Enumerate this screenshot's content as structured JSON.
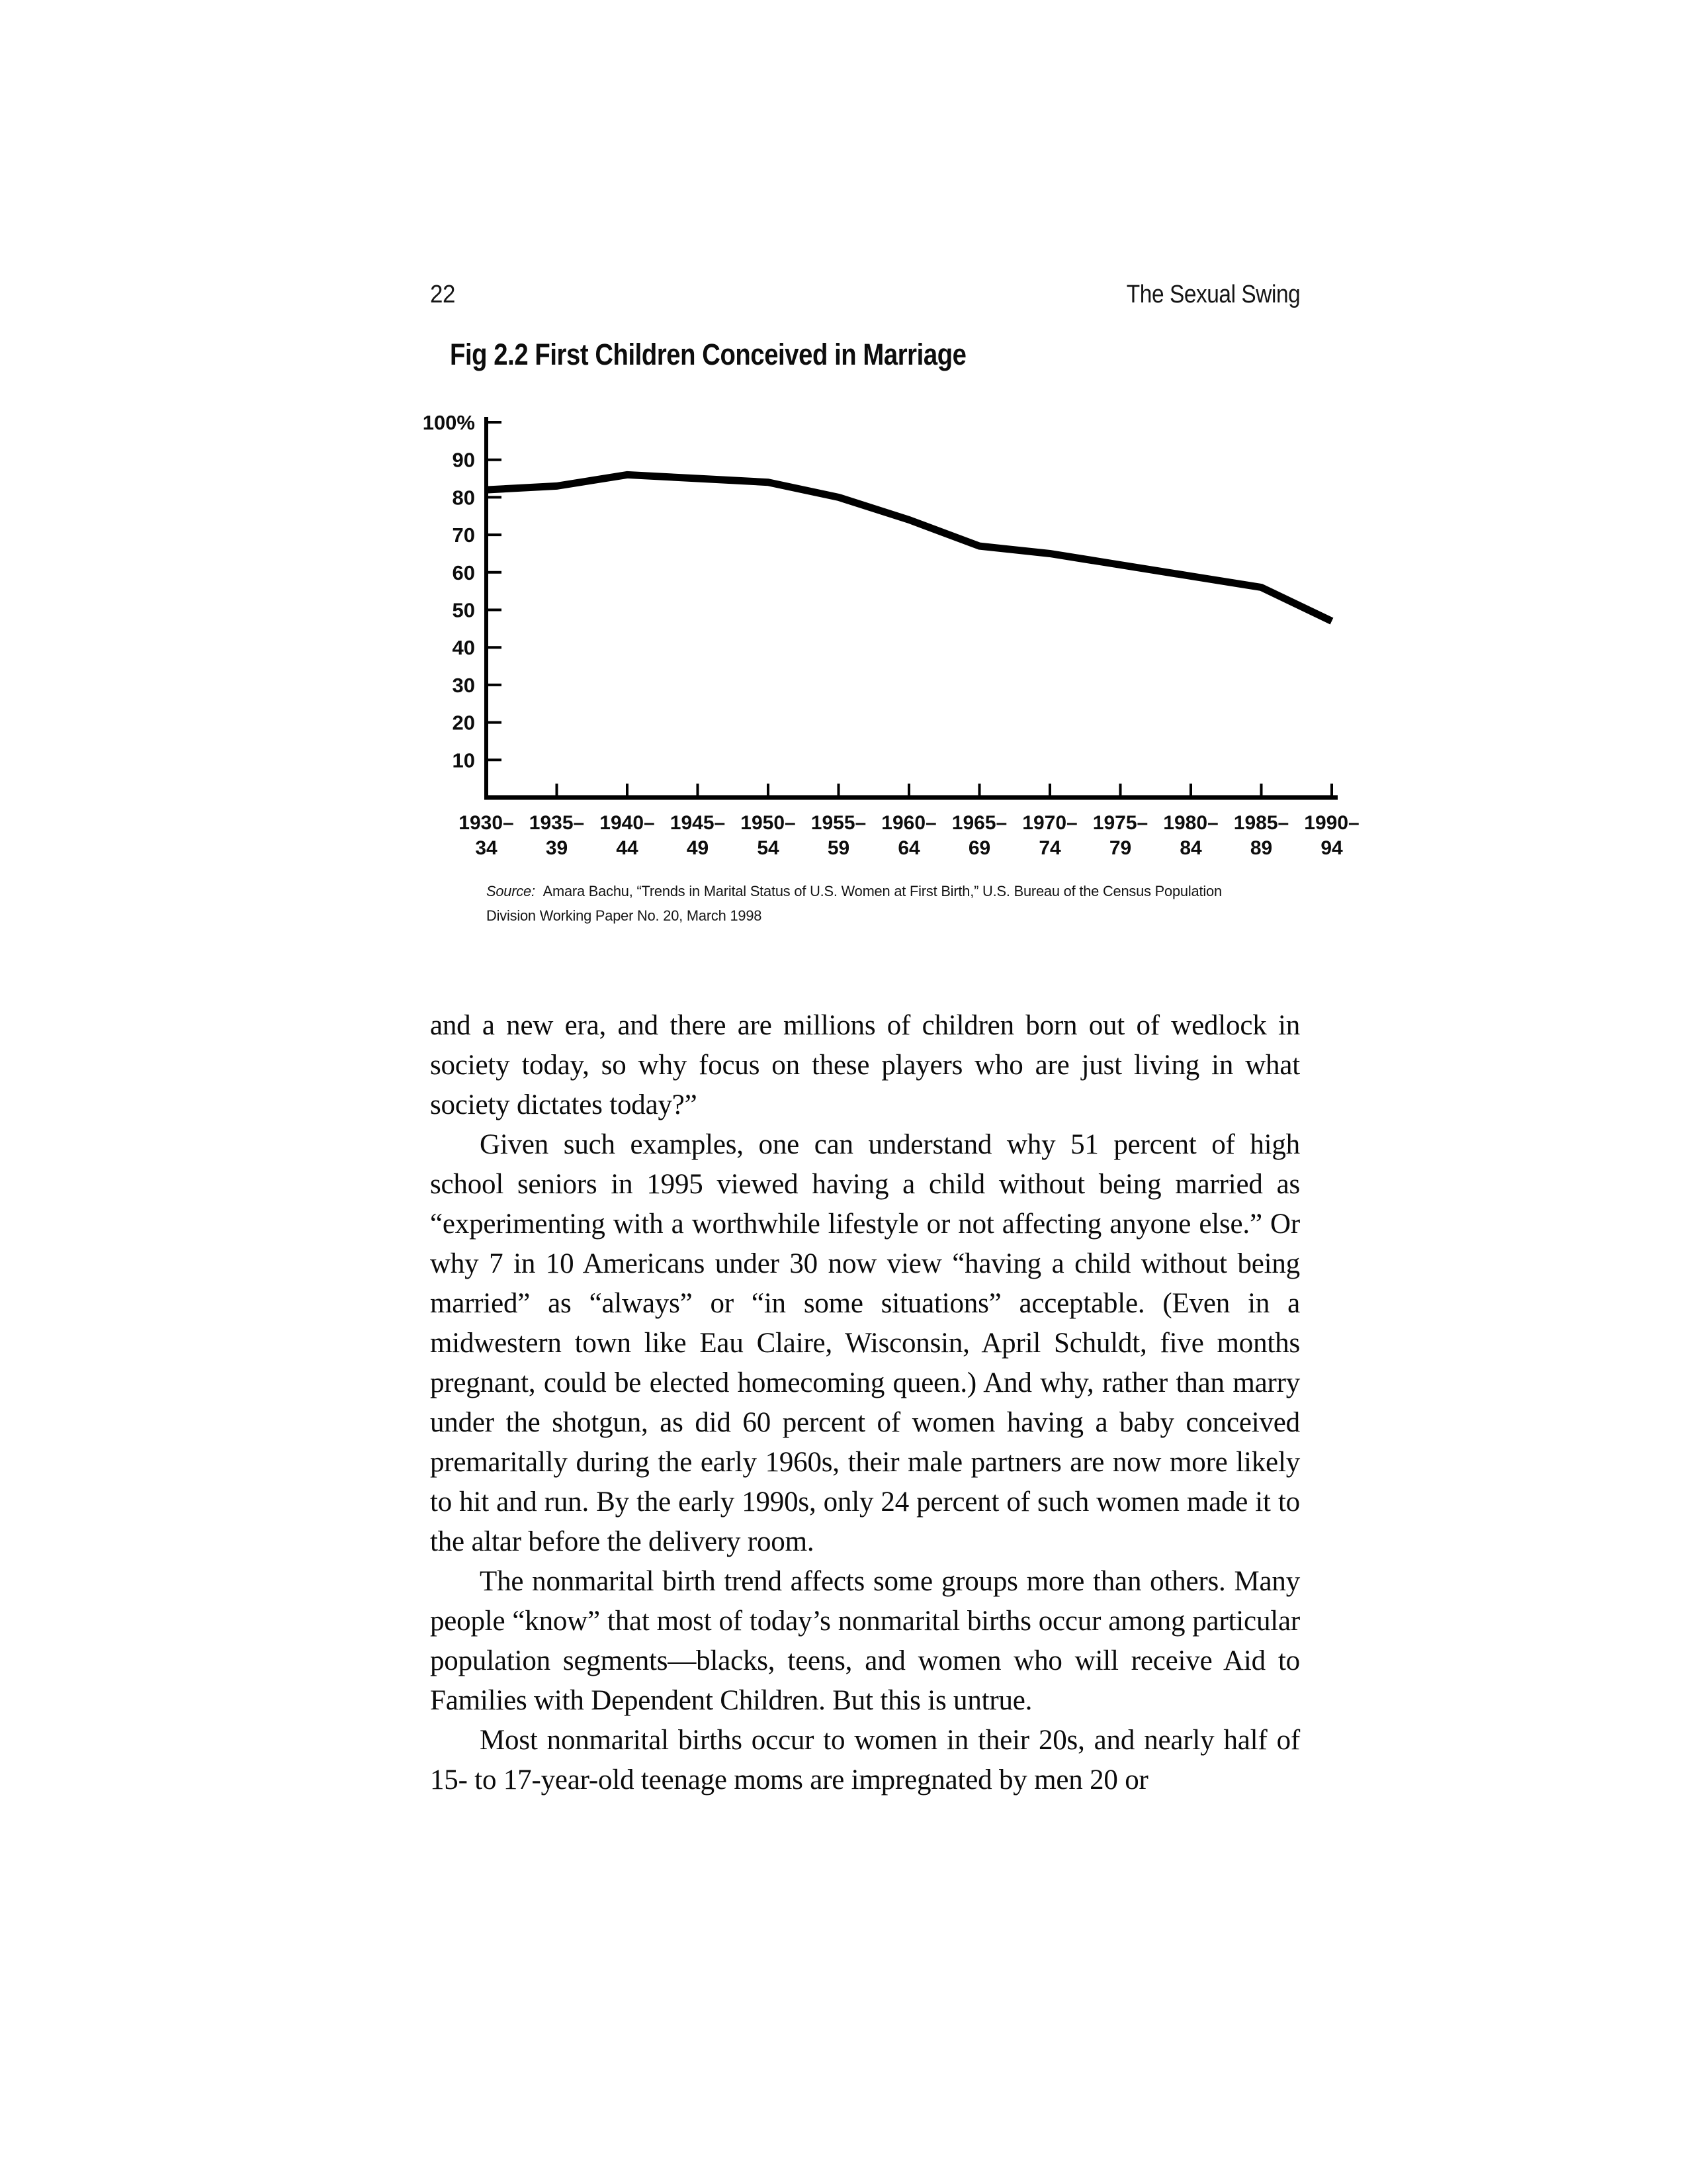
{
  "header": {
    "page_number": "22",
    "running_title": "The Sexual Swing"
  },
  "figure": {
    "title": "Fig 2.2 First Children Conceived in Marriage",
    "source_label": "Source:",
    "source_text": "Amara Bachu, “Trends in Marital Status of U.S. Women at First Birth,” U.S. Bureau of the Census Population Division Working Paper No. 20, March 1998"
  },
  "chart_data": {
    "type": "line",
    "title": "Fig 2.2 First Children Conceived in Marriage",
    "categories": [
      "1930–34",
      "1935–39",
      "1940–44",
      "1945–49",
      "1950–54",
      "1955–59",
      "1960–64",
      "1965–69",
      "1970–74",
      "1975–79",
      "1980–84",
      "1985–89",
      "1990–94"
    ],
    "values": [
      82,
      83,
      86,
      85,
      84,
      80,
      74,
      67,
      65,
      62,
      59,
      56,
      47
    ],
    "y_tick_labels": [
      "100%",
      "90",
      "80",
      "70",
      "60",
      "50",
      "40",
      "30",
      "20",
      "10"
    ],
    "y_tick_values": [
      100,
      90,
      80,
      70,
      60,
      50,
      40,
      30,
      20,
      10
    ],
    "ylim": [
      0,
      100
    ],
    "xlabel": "",
    "ylabel": "",
    "grid": false,
    "legend": false,
    "line_color": "#000000",
    "axis_color": "#000000"
  },
  "body": {
    "paragraphs": [
      "and a new era, and there are millions of children born out of wedlock in society today, so why focus on these players who are just living in what society dictates today?”",
      "Given such examples, one can understand why 51 percent of high school seniors in 1995 viewed having a child without being married as “experimenting with a worthwhile lifestyle or not affecting anyone else.” Or why 7 in 10 Americans under 30 now view “having a child without being married” as “always” or “in some situations” acceptable. (Even in a midwestern town like Eau Claire, Wisconsin, April Schuldt, five months pregnant, could be elected homecoming queen.) And why, rather than marry under the shotgun, as did 60 percent of women having a baby conceived premaritally during the early 1960s, their male partners are now more likely to hit and run. By the early 1990s, only 24 percent of such women made it to the altar before the delivery room.",
      "The nonmarital birth trend affects some groups more than others. Many people “know” that most of today’s nonmarital births occur among particular population segments—blacks, teens, and women who will receive Aid to Families with Dependent Children. But this is untrue.",
      "Most nonmarital births occur to women in their 20s, and nearly half of 15- to 17-year-old teenage moms are impregnated by men 20 or"
    ]
  }
}
